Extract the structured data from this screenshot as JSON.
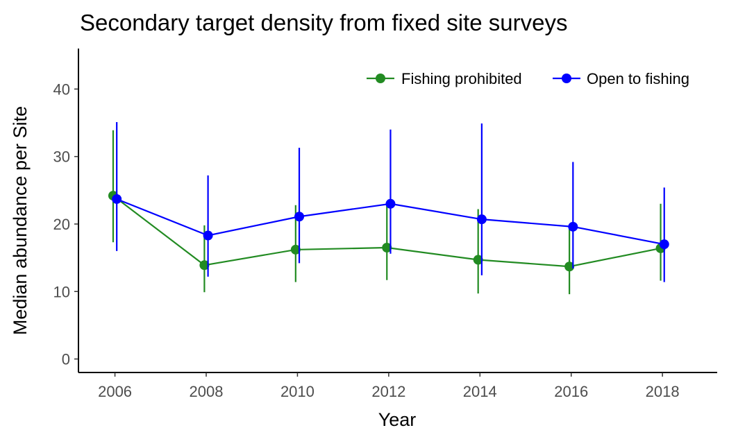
{
  "chart_data": {
    "type": "line",
    "title": "Secondary target density from fixed site surveys",
    "xlabel": "Year",
    "ylabel": "Median abundance per Site",
    "xlim": [
      2005.2,
      2019.2
    ],
    "ylim": [
      -2,
      46
    ],
    "x_ticks": [
      "2006",
      "2008",
      "2010",
      "2012",
      "2014",
      "2016",
      "2018"
    ],
    "y_ticks": [
      "0",
      "10",
      "20",
      "30",
      "40"
    ],
    "grid": false,
    "legend_position": "top-right",
    "series": [
      {
        "name": "Fishing prohibited",
        "color": "#228B22",
        "x": [
          2006,
          2008,
          2010,
          2012,
          2014,
          2016,
          2018
        ],
        "values": [
          24.2,
          13.9,
          16.2,
          16.5,
          14.7,
          13.7,
          16.4
        ],
        "lower": [
          17.3,
          9.9,
          11.4,
          11.7,
          9.7,
          9.6,
          11.6
        ],
        "upper": [
          33.9,
          19.8,
          22.8,
          22.9,
          22.2,
          19.6,
          23.0
        ]
      },
      {
        "name": "Open to fishing",
        "color": "#0000FF",
        "x": [
          2006,
          2008,
          2010,
          2012,
          2014,
          2016,
          2018
        ],
        "values": [
          23.7,
          18.3,
          21.1,
          23.0,
          20.7,
          19.6,
          17.0
        ],
        "lower": [
          16.0,
          12.2,
          14.2,
          15.6,
          12.4,
          13.4,
          11.4
        ],
        "upper": [
          35.1,
          27.2,
          31.3,
          34.0,
          34.9,
          29.2,
          25.4
        ]
      }
    ]
  }
}
